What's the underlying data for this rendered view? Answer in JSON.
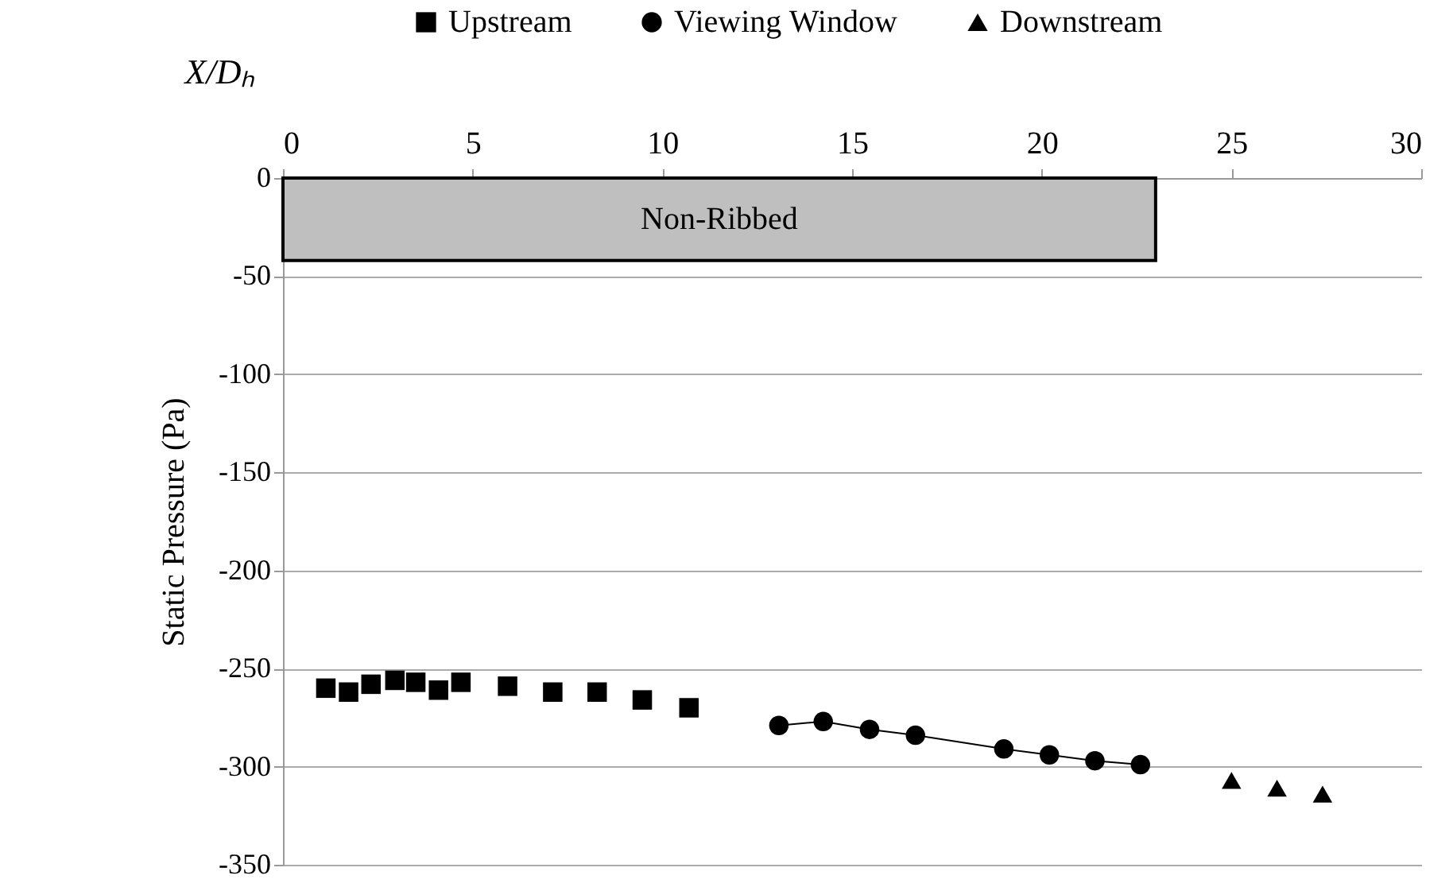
{
  "chart_data": {
    "type": "scatter",
    "xlabel": "X/Dₕ",
    "ylabel": "Static Pressure (Pa)",
    "xlim": [
      0,
      30
    ],
    "xticks": [
      0,
      5,
      10,
      15,
      20,
      25,
      30
    ],
    "ylim": [
      -350,
      0
    ],
    "yticks": [
      -350,
      -300,
      -250,
      -200,
      -150,
      -100,
      -50,
      0
    ],
    "grid": "y",
    "legend": "top",
    "bands": [
      {
        "axis": "x",
        "from": 0,
        "to": 23,
        "label": "Non-Ribbed",
        "color": "#bfbfbf"
      }
    ],
    "series": [
      {
        "name": "Upstream",
        "marker": "square",
        "color": "#000000",
        "x": [
          1.13,
          1.73,
          2.32,
          2.95,
          3.5,
          4.1,
          4.69,
          5.92,
          7.11,
          8.28,
          9.47,
          10.7
        ],
        "values": [
          -260,
          -262,
          -258,
          -256,
          -257,
          -261,
          -257,
          -259,
          -262,
          -262,
          -266,
          -270
        ]
      },
      {
        "name": "Viewing Window",
        "type": "line",
        "marker": "circle",
        "color": "#000000",
        "x": [
          13.07,
          14.24,
          15.46,
          16.67,
          19.0,
          20.2,
          21.4,
          22.6
        ],
        "values": [
          -279,
          -277,
          -281,
          -284,
          -291,
          -294,
          -297,
          -299
        ]
      },
      {
        "name": "Downstream",
        "marker": "triangle",
        "color": "#000000",
        "x": [
          25.0,
          26.2,
          27.4
        ],
        "values": [
          -307,
          -311,
          -314
        ]
      }
    ]
  }
}
